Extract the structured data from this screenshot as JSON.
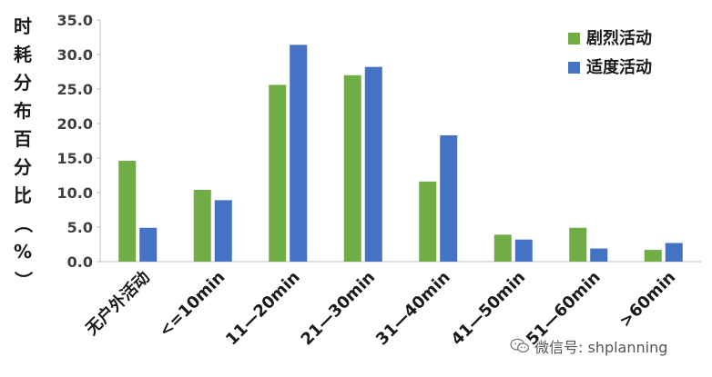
{
  "chart_data": {
    "type": "bar",
    "ylabel": "时耗分布百分比（%）",
    "ylabel_chars": [
      "时",
      "耗",
      "分",
      "布",
      "百",
      "分",
      "比",
      "（",
      "%",
      "）"
    ],
    "categories": [
      "无户外活动",
      "<=10min",
      "11—20min",
      "21—30min",
      "31—40min",
      "41—50min",
      "51—60min",
      ">60min"
    ],
    "series": [
      {
        "name": "剧烈活动",
        "color": "#70ad47",
        "values": [
          14.6,
          10.4,
          25.6,
          27.0,
          11.6,
          3.9,
          4.9,
          1.7
        ]
      },
      {
        "name": "适度活动",
        "color": "#4472c4",
        "values": [
          4.9,
          8.9,
          31.4,
          28.2,
          18.3,
          3.2,
          1.9,
          2.7
        ]
      }
    ],
    "ylim": [
      0,
      35
    ],
    "yticks": [
      "0.0",
      "5.0",
      "10.0",
      "15.0",
      "20.0",
      "25.0",
      "30.0",
      "35.0"
    ],
    "legend_position": "top-right",
    "grid": false
  },
  "watermark": {
    "text": "微信号: shplanning",
    "icon": "wechat-icon"
  }
}
